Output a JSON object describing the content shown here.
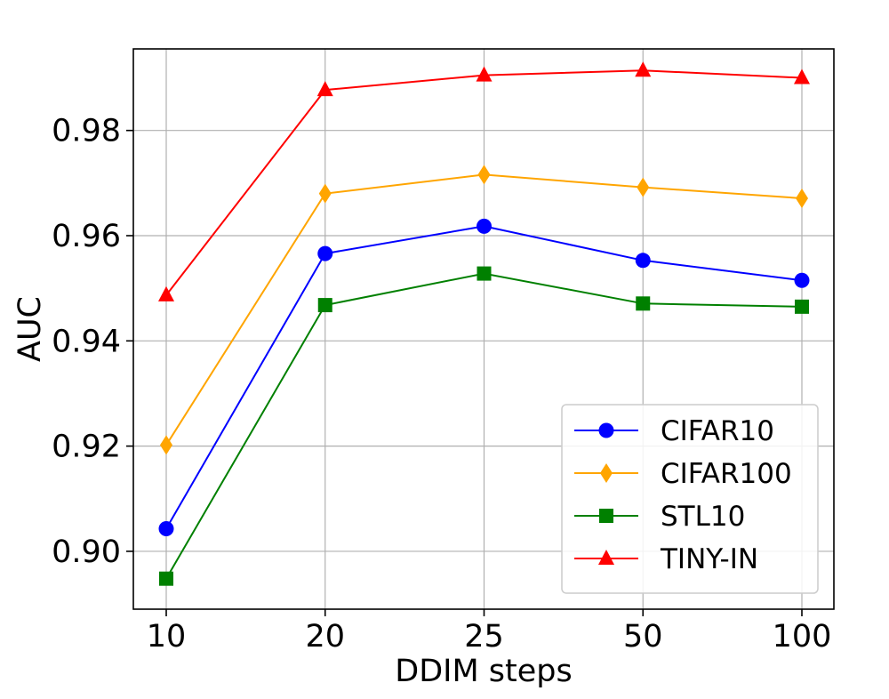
{
  "chart_data": {
    "type": "line",
    "title": "",
    "xlabel": "DDIM steps",
    "ylabel": "AUC",
    "categories": [
      "10",
      "20",
      "25",
      "50",
      "100"
    ],
    "ylim": [
      0.889,
      0.9955
    ],
    "yticks": [
      0.9,
      0.92,
      0.94,
      0.96,
      0.98
    ],
    "ytick_labels": [
      "0.90",
      "0.92",
      "0.94",
      "0.96",
      "0.98"
    ],
    "grid": true,
    "legend_position": "lower-right",
    "series": [
      {
        "name": "CIFAR10",
        "color": "#0000ff",
        "marker": "circle",
        "values": [
          0.9043,
          0.9566,
          0.9618,
          0.9553,
          0.9515
        ]
      },
      {
        "name": "CIFAR100",
        "color": "#ffa500",
        "marker": "diamond",
        "values": [
          0.9202,
          0.968,
          0.9716,
          0.9692,
          0.9671
        ]
      },
      {
        "name": "STL10",
        "color": "#008000",
        "marker": "square",
        "values": [
          0.8948,
          0.9468,
          0.9528,
          0.9471,
          0.9465
        ]
      },
      {
        "name": "TINY-IN",
        "color": "#ff0000",
        "marker": "triangle",
        "values": [
          0.9487,
          0.9877,
          0.9905,
          0.9914,
          0.99
        ]
      }
    ]
  }
}
